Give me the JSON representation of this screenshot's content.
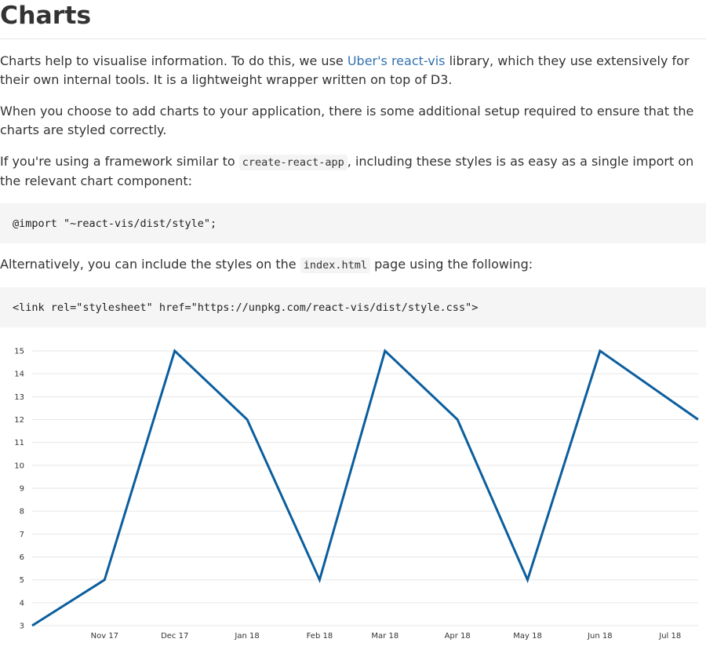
{
  "page": {
    "title": "Charts",
    "intro": {
      "before": "Charts help to visualise information. To do this, we use ",
      "link": "Uber's react-vis",
      "after": " library, which they use extensively for their own internal tools. It is a lightweight wrapper written on top of D3."
    },
    "setup_text": "When you choose to add charts to your application, there is some additional setup required to ensure that the charts are styled correctly.",
    "framework": {
      "before": "If you're using a framework similar to ",
      "code": "create-react-app",
      "after": ", including these styles is as easy as a single import on the relevant chart component:"
    },
    "code_import": "@import \"~react-vis/dist/style\";",
    "alternative": {
      "before": "Alternatively, you can include the styles on the ",
      "code": "index.html",
      "after": " page using the following:"
    },
    "code_link": "<link rel=\"stylesheet\" href=\"https://unpkg.com/react-vis/dist/style.css\">"
  },
  "colors": {
    "line": "#0b5e9e",
    "grid": "#e6e6e6",
    "link": "#3572b0"
  },
  "chart_data": {
    "type": "line",
    "title": "",
    "xlabel": "",
    "ylabel": "",
    "x_ticks": [
      "Nov 17",
      "Dec 17",
      "Jan 18",
      "Feb 18",
      "Mar 18",
      "Apr 18",
      "May 18",
      "Jun 18",
      "Jul 18"
    ],
    "y_ticks": [
      3,
      4,
      5,
      6,
      7,
      8,
      9,
      10,
      11,
      12,
      13,
      14,
      15
    ],
    "ylim": [
      3,
      15
    ],
    "xlim": [
      "2017-10-01",
      "2018-07-13"
    ],
    "grid": true,
    "legend": "none",
    "series": [
      {
        "x": [
          "2017-10-01",
          "2017-11-01",
          "2017-12-01",
          "2018-01-01",
          "2018-02-01",
          "2018-03-01",
          "2018-04-01",
          "2018-05-01",
          "2018-06-01",
          "2018-07-13"
        ],
        "values": [
          3,
          5,
          15,
          12,
          5,
          15,
          12,
          5,
          15,
          12
        ]
      }
    ]
  }
}
